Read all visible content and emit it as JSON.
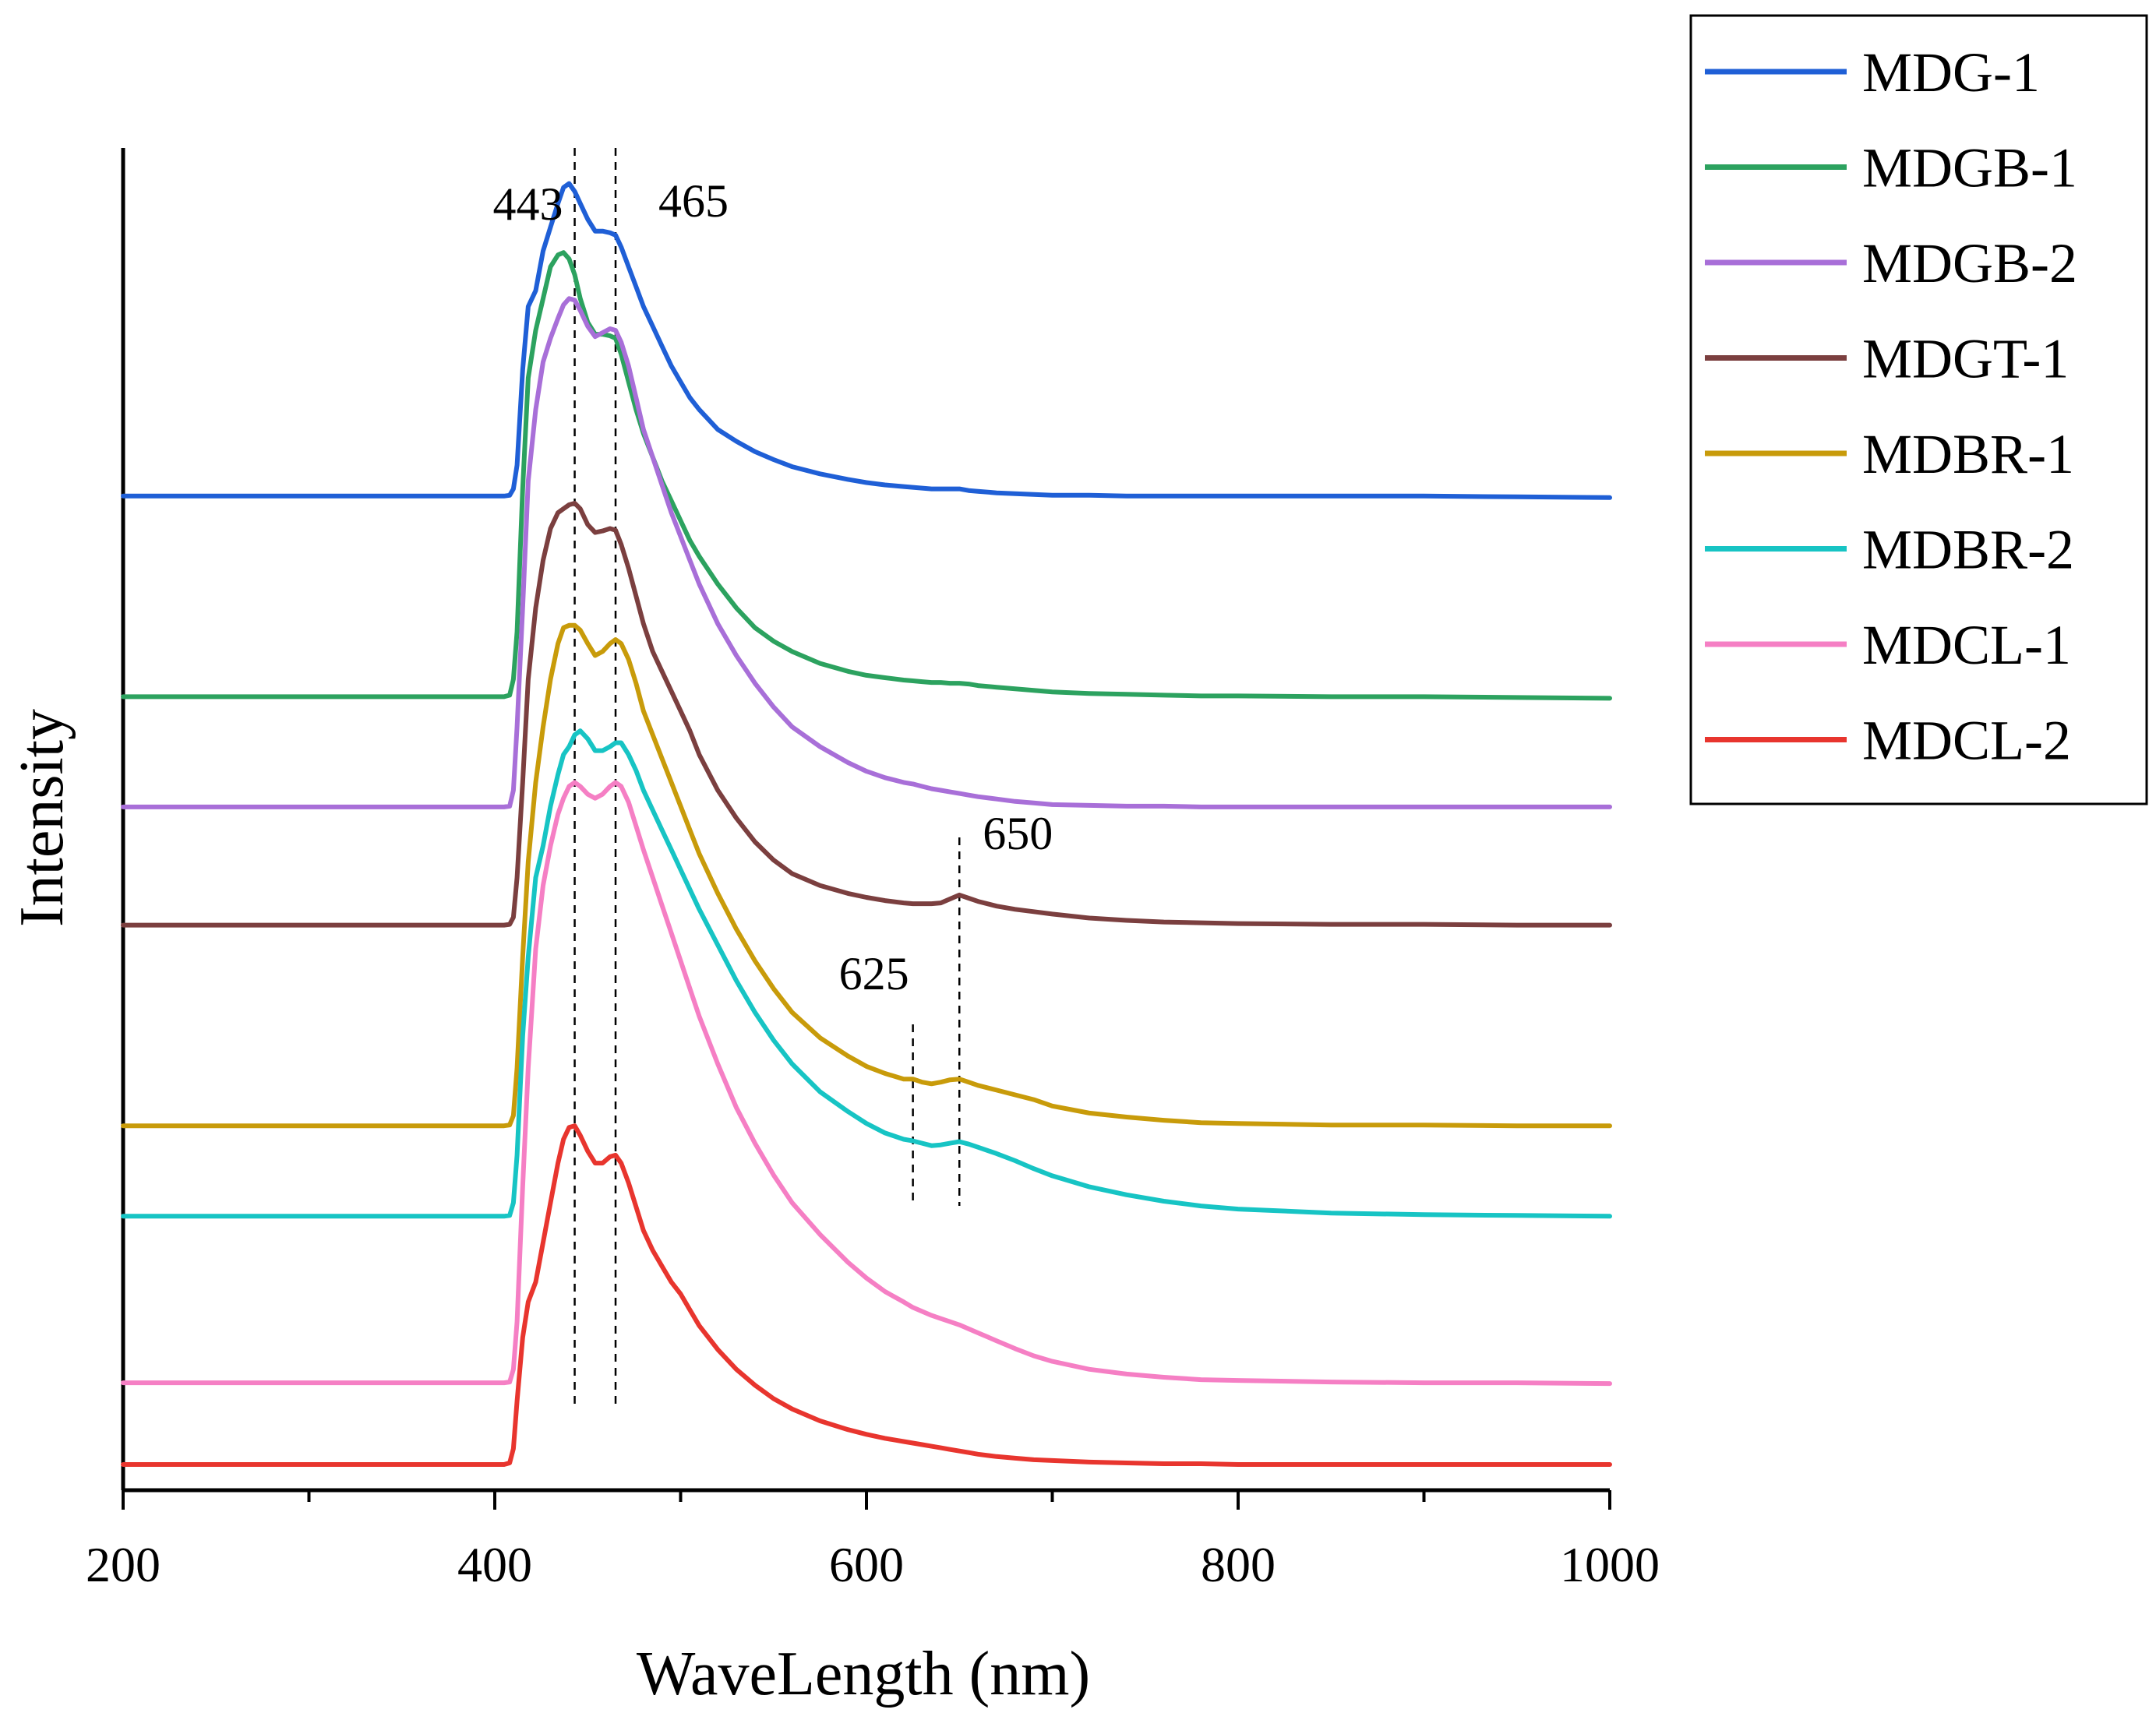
{
  "chart_data": {
    "type": "line",
    "title": "",
    "xlabel": "WaveLength (nm)",
    "ylabel": "Intensity",
    "xlim": [
      200,
      1000
    ],
    "ylim": [
      0,
      16.5
    ],
    "x_ticks": [
      200,
      400,
      600,
      800,
      1000
    ],
    "x_minor_ticks": [
      300,
      500,
      700,
      900
    ],
    "grid": false,
    "legend_position": "top-right, outside plot",
    "x": [
      200,
      405,
      408,
      410,
      412,
      415,
      418,
      422,
      426,
      430,
      434,
      437,
      440,
      443,
      446,
      450,
      454,
      458,
      462,
      465,
      468,
      472,
      476,
      480,
      485,
      490,
      495,
      500,
      505,
      510,
      520,
      530,
      540,
      550,
      560,
      575,
      590,
      600,
      610,
      620,
      625,
      630,
      635,
      640,
      645,
      650,
      655,
      660,
      670,
      680,
      690,
      700,
      720,
      740,
      760,
      780,
      800,
      850,
      900,
      950,
      1000
    ],
    "series": [
      {
        "name": "MDG-1",
        "color": "#1f5fd6",
        "values": [
          12.21,
          12.21,
          12.22,
          12.3,
          12.6,
          13.8,
          14.6,
          14.8,
          15.3,
          15.6,
          15.9,
          16.1,
          16.15,
          16.05,
          15.9,
          15.7,
          15.55,
          15.55,
          15.53,
          15.5,
          15.35,
          15.1,
          14.85,
          14.6,
          14.35,
          14.1,
          13.85,
          13.65,
          13.45,
          13.3,
          13.05,
          12.9,
          12.77,
          12.67,
          12.58,
          12.49,
          12.42,
          12.38,
          12.35,
          12.33,
          12.32,
          12.31,
          12.3,
          12.3,
          12.3,
          12.3,
          12.28,
          12.27,
          12.25,
          12.24,
          12.23,
          12.22,
          12.22,
          12.21,
          12.21,
          12.21,
          12.21,
          12.21,
          12.21,
          12.2,
          12.19
        ]
      },
      {
        "name": "MDGB-1",
        "color": "#2ca25f",
        "values": [
          9.68,
          9.68,
          9.7,
          9.9,
          10.5,
          12.3,
          13.7,
          14.3,
          14.7,
          15.1,
          15.25,
          15.28,
          15.2,
          15.0,
          14.7,
          14.4,
          14.25,
          14.25,
          14.23,
          14.2,
          14.0,
          13.65,
          13.3,
          13.0,
          12.7,
          12.4,
          12.15,
          11.9,
          11.65,
          11.45,
          11.1,
          10.8,
          10.55,
          10.38,
          10.25,
          10.1,
          10.0,
          9.95,
          9.92,
          9.89,
          9.88,
          9.87,
          9.86,
          9.86,
          9.85,
          9.85,
          9.84,
          9.82,
          9.8,
          9.78,
          9.76,
          9.74,
          9.72,
          9.71,
          9.7,
          9.69,
          9.69,
          9.68,
          9.68,
          9.67,
          9.66
        ]
      },
      {
        "name": "MDGB-2",
        "color": "#a86fd8",
        "values": [
          8.29,
          8.29,
          8.3,
          8.5,
          9.3,
          10.8,
          12.4,
          13.3,
          13.9,
          14.2,
          14.45,
          14.62,
          14.7,
          14.68,
          14.55,
          14.35,
          14.22,
          14.27,
          14.32,
          14.3,
          14.15,
          13.85,
          13.45,
          13.05,
          12.7,
          12.35,
          12.0,
          11.7,
          11.4,
          11.1,
          10.6,
          10.2,
          9.85,
          9.55,
          9.3,
          9.05,
          8.85,
          8.74,
          8.66,
          8.6,
          8.58,
          8.55,
          8.52,
          8.5,
          8.48,
          8.46,
          8.44,
          8.42,
          8.39,
          8.36,
          8.34,
          8.32,
          8.31,
          8.3,
          8.3,
          8.29,
          8.29,
          8.29,
          8.29,
          8.29,
          8.29
        ]
      },
      {
        "name": "MDGT-1",
        "color": "#7b3f3f",
        "values": [
          6.8,
          6.8,
          6.81,
          6.9,
          7.4,
          8.6,
          9.9,
          10.8,
          11.4,
          11.8,
          12.0,
          12.05,
          12.1,
          12.12,
          12.05,
          11.85,
          11.75,
          11.77,
          11.8,
          11.78,
          11.6,
          11.3,
          10.95,
          10.6,
          10.25,
          10.0,
          9.75,
          9.5,
          9.25,
          8.95,
          8.5,
          8.15,
          7.85,
          7.62,
          7.45,
          7.3,
          7.2,
          7.15,
          7.11,
          7.08,
          7.07,
          7.07,
          7.07,
          7.08,
          7.13,
          7.18,
          7.14,
          7.1,
          7.04,
          7.0,
          6.97,
          6.94,
          6.89,
          6.86,
          6.84,
          6.83,
          6.82,
          6.81,
          6.81,
          6.8,
          6.8
        ]
      },
      {
        "name": "MDBR-1",
        "color": "#c89b0a",
        "values": [
          4.27,
          4.27,
          4.28,
          4.4,
          5.0,
          6.4,
          7.6,
          8.6,
          9.3,
          9.9,
          10.35,
          10.55,
          10.58,
          10.58,
          10.52,
          10.35,
          10.2,
          10.25,
          10.35,
          10.4,
          10.35,
          10.15,
          9.85,
          9.5,
          9.2,
          8.9,
          8.6,
          8.3,
          8.0,
          7.7,
          7.2,
          6.75,
          6.35,
          6.0,
          5.7,
          5.38,
          5.15,
          5.02,
          4.93,
          4.86,
          4.86,
          4.82,
          4.8,
          4.82,
          4.85,
          4.86,
          4.82,
          4.78,
          4.72,
          4.66,
          4.6,
          4.52,
          4.43,
          4.38,
          4.34,
          4.31,
          4.3,
          4.28,
          4.28,
          4.27,
          4.27
        ]
      },
      {
        "name": "MDBR-2",
        "color": "#17c4c4",
        "values": [
          3.13,
          3.13,
          3.14,
          3.3,
          3.9,
          5.4,
          6.4,
          7.4,
          7.8,
          8.3,
          8.7,
          8.95,
          9.05,
          9.2,
          9.25,
          9.15,
          9.0,
          9.0,
          9.05,
          9.1,
          9.1,
          8.95,
          8.75,
          8.5,
          8.25,
          8.0,
          7.75,
          7.5,
          7.25,
          7.0,
          6.55,
          6.1,
          5.7,
          5.35,
          5.05,
          4.7,
          4.45,
          4.3,
          4.18,
          4.1,
          4.08,
          4.05,
          4.02,
          4.03,
          4.05,
          4.07,
          4.04,
          4.0,
          3.92,
          3.83,
          3.73,
          3.64,
          3.5,
          3.4,
          3.32,
          3.26,
          3.22,
          3.17,
          3.15,
          3.14,
          3.13
        ]
      },
      {
        "name": "MDCL-1",
        "color": "#f57fc4",
        "values": [
          1.03,
          1.03,
          1.04,
          1.2,
          1.8,
          3.5,
          5.0,
          6.5,
          7.3,
          7.8,
          8.2,
          8.4,
          8.55,
          8.6,
          8.55,
          8.45,
          8.4,
          8.45,
          8.55,
          8.6,
          8.55,
          8.35,
          8.05,
          7.75,
          7.4,
          7.05,
          6.7,
          6.35,
          6.0,
          5.65,
          5.05,
          4.5,
          4.05,
          3.65,
          3.3,
          2.9,
          2.55,
          2.35,
          2.18,
          2.05,
          1.98,
          1.93,
          1.88,
          1.84,
          1.8,
          1.76,
          1.71,
          1.66,
          1.56,
          1.46,
          1.37,
          1.3,
          1.2,
          1.14,
          1.1,
          1.07,
          1.06,
          1.04,
          1.03,
          1.03,
          1.02
        ]
      },
      {
        "name": "MDCL-2",
        "color": "#e8352e",
        "values": [
          0.0,
          0.0,
          0.02,
          0.2,
          0.8,
          1.6,
          2.05,
          2.3,
          2.8,
          3.3,
          3.8,
          4.1,
          4.25,
          4.27,
          4.15,
          3.95,
          3.8,
          3.8,
          3.88,
          3.9,
          3.8,
          3.55,
          3.25,
          2.95,
          2.7,
          2.5,
          2.3,
          2.15,
          1.95,
          1.75,
          1.45,
          1.2,
          1.0,
          0.83,
          0.7,
          0.55,
          0.44,
          0.38,
          0.33,
          0.29,
          0.27,
          0.25,
          0.23,
          0.21,
          0.19,
          0.17,
          0.15,
          0.13,
          0.1,
          0.08,
          0.06,
          0.05,
          0.03,
          0.02,
          0.01,
          0.01,
          0.0,
          0.0,
          0.0,
          0.0,
          0.0
        ]
      }
    ],
    "annotations": [
      {
        "text": "443",
        "x": 443,
        "guide": "top"
      },
      {
        "text": "465",
        "x": 465,
        "guide": "top"
      },
      {
        "text": "625",
        "x": 625,
        "guide": "mid"
      },
      {
        "text": "650",
        "x": 650,
        "guide": "mid"
      }
    ]
  }
}
